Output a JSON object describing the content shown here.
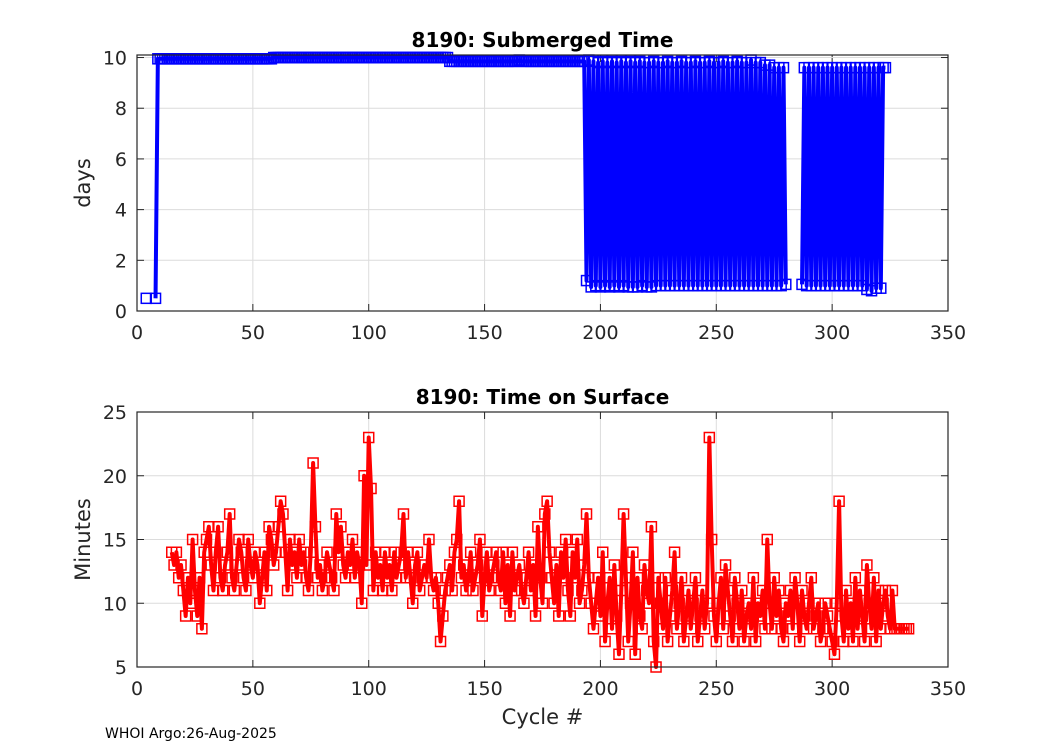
{
  "chart_data": [
    {
      "type": "line",
      "title": "8190: Submerged Time",
      "xlabel": "",
      "ylabel": "days",
      "xlim": [
        0,
        350
      ],
      "ylim": [
        0,
        10.1
      ],
      "xticks": [
        0,
        50,
        100,
        150,
        200,
        250,
        300,
        350
      ],
      "yticks": [
        0,
        2,
        4,
        6,
        8,
        10
      ],
      "grid": true,
      "color": "#0000ff",
      "marker": "square",
      "series": [
        {
          "name": "Submerged Time",
          "x_start": 4,
          "values": [
            0.5,
            null,
            null,
            null,
            0.5,
            9.95,
            9.95,
            9.95,
            9.95,
            9.95,
            9.95,
            9.95,
            9.95,
            9.95,
            9.95,
            9.95,
            9.95,
            9.95,
            9.95,
            9.95,
            9.95,
            9.95,
            9.95,
            9.95,
            9.95,
            9.95,
            9.95,
            9.95,
            9.95,
            9.95,
            9.95,
            9.95,
            9.95,
            9.95,
            9.95,
            9.95,
            9.95,
            9.95,
            9.95,
            9.95,
            9.95,
            9.95,
            9.95,
            9.95,
            9.95,
            9.95,
            9.95,
            9.95,
            9.95,
            9.95,
            9.95,
            9.95,
            9.95,
            9.95,
            9.95,
            10,
            10,
            10,
            10,
            10,
            10,
            10,
            10,
            10,
            10,
            10,
            10,
            10,
            10,
            10,
            10,
            10,
            10,
            10,
            10,
            10,
            10,
            10,
            10,
            10,
            10,
            10,
            10,
            10,
            10,
            10,
            10,
            10,
            10,
            10,
            10,
            10,
            10,
            10,
            10,
            10,
            10,
            10,
            10,
            10,
            10,
            10,
            10,
            10,
            10,
            10,
            10,
            10,
            10,
            10,
            10,
            10,
            10,
            10,
            10,
            10,
            10,
            10,
            10,
            10,
            10,
            10,
            10,
            10,
            10,
            10,
            10,
            10,
            10,
            10,
            10,
            9.85,
            9.85,
            9.85,
            9.85,
            9.85,
            9.85,
            9.85,
            9.85,
            9.85,
            9.85,
            9.85,
            9.85,
            9.85,
            9.85,
            9.85,
            9.85,
            9.85,
            9.85,
            9.85,
            9.85,
            9.85,
            9.85,
            9.85,
            9.85,
            9.85,
            9.85,
            9.85,
            9.85,
            9.85,
            9.85,
            9.9,
            9.85,
            9.85,
            9.85,
            9.85,
            9.85,
            9.85,
            9.85,
            9.85,
            9.85,
            9.85,
            9.85,
            9.85,
            9.85,
            9.85,
            9.85,
            9.85,
            9.85,
            9.85,
            9.85,
            9.85,
            9.85,
            9.85,
            9.85,
            9.85,
            9.85,
            9.85,
            9.85,
            9.85,
            1.2,
            9.9,
            0.95,
            9.85,
            1.0,
            9.8,
            0.95,
            9.85,
            1.0,
            9.8,
            0.95,
            9.85,
            1.0,
            9.8,
            0.95,
            9.85,
            1.0,
            9.8,
            0.95,
            9.85,
            0.95,
            9.8,
            0.95,
            9.85,
            1.0,
            9.8,
            0.95,
            9.8,
            0.95,
            9.85,
            1.0,
            9.8,
            1.0,
            9.8,
            1.0,
            9.85,
            1.0,
            9.8,
            1.0,
            9.8,
            1.0,
            9.85,
            1.0,
            9.8,
            1.0,
            9.8,
            1.0,
            9.85,
            1.0,
            9.8,
            1.0,
            9.8,
            1.0,
            9.85,
            1.0,
            9.8,
            1.0,
            9.8,
            1.0,
            9.85,
            1.0,
            9.8,
            1.0,
            9.8,
            1.0,
            9.85,
            1.0,
            9.8,
            1.0,
            9.8,
            1.0,
            9.9,
            1.0,
            9.8,
            1.0,
            9.8,
            1.0,
            9.7,
            1.0,
            9.7,
            1.0,
            9.6,
            1.0,
            9.6,
            1.0,
            9.6,
            1.05,
            null,
            null,
            null,
            null,
            null,
            null,
            1.05,
            9.6,
            1.0,
            9.6,
            1.0,
            9.6,
            1.0,
            9.6,
            1.0,
            9.6,
            1.0,
            9.6,
            1.0,
            9.6,
            1.0,
            9.6,
            1.0,
            9.6,
            1.0,
            9.6,
            1.0,
            9.6,
            1.0,
            9.6,
            1.0,
            9.6,
            1.0,
            9.6,
            0.85,
            9.6,
            0.8,
            9.6,
            0.9,
            9.6,
            0.9,
            9.6,
            9.6
          ]
        }
      ]
    },
    {
      "type": "line",
      "title": "8190: Time on Surface",
      "xlabel": "Cycle #",
      "ylabel": "Minutes",
      "xlim": [
        0,
        350
      ],
      "ylim": [
        5,
        25
      ],
      "xticks": [
        0,
        50,
        100,
        150,
        200,
        250,
        300,
        350
      ],
      "yticks": [
        5,
        10,
        15,
        20,
        25
      ],
      "grid": true,
      "color": "#ff0000",
      "marker": "square",
      "series": [
        {
          "name": "Time on Surface",
          "x_start": 15,
          "values": [
            14,
            13,
            14,
            12,
            13,
            11,
            9,
            12,
            10,
            15,
            11,
            9,
            12,
            8,
            14,
            15,
            16,
            13,
            11,
            14,
            16,
            12,
            11,
            13,
            14,
            17,
            12,
            11,
            13,
            15,
            14,
            12,
            11,
            15,
            13,
            12,
            14,
            13,
            10,
            12,
            14,
            11,
            16,
            15,
            13,
            14,
            16,
            18,
            17,
            14,
            11,
            15,
            13,
            14,
            12,
            15,
            13,
            14,
            12,
            11,
            14,
            21,
            16,
            12,
            13,
            11,
            12,
            14,
            13,
            12,
            11,
            17,
            14,
            16,
            13,
            12,
            14,
            13,
            15,
            12,
            14,
            13,
            10,
            20,
            13,
            23,
            19,
            11,
            14,
            12,
            13,
            11,
            14,
            12,
            13,
            11,
            14,
            12,
            13,
            14,
            17,
            12,
            14,
            12,
            10,
            13,
            14,
            11,
            12,
            13,
            12,
            15,
            12,
            11,
            12,
            10,
            7,
            9,
            11,
            12,
            13,
            11,
            14,
            15,
            18,
            12,
            13,
            11,
            12,
            14,
            11,
            12,
            13,
            15,
            9,
            12,
            14,
            11,
            12,
            13,
            14,
            12,
            11,
            14,
            10,
            13,
            9,
            14,
            11,
            12,
            13,
            11,
            10,
            12,
            14,
            11,
            13,
            9,
            16,
            12,
            10,
            17,
            18,
            14,
            12,
            10,
            13,
            9,
            14,
            12,
            15,
            11,
            9,
            14,
            12,
            15,
            10,
            11,
            13,
            17,
            12,
            10,
            8,
            10,
            12,
            9,
            14,
            7,
            10,
            12,
            8,
            13,
            9,
            6,
            11,
            17,
            12,
            7,
            10,
            14,
            6,
            12,
            9,
            8,
            13,
            11,
            10,
            16,
            7,
            5,
            12,
            10,
            8,
            12,
            7,
            9,
            11,
            14,
            8,
            10,
            12,
            7,
            9,
            11,
            8,
            10,
            12,
            7,
            9,
            11,
            8,
            10,
            23,
            15,
            9,
            7,
            10,
            12,
            8,
            13,
            11,
            9,
            7,
            12,
            10,
            8,
            11,
            7,
            9,
            10,
            8,
            12,
            7,
            10,
            9,
            11,
            8,
            15,
            10,
            8,
            12,
            9,
            11,
            8,
            7,
            10,
            9,
            11,
            8,
            12,
            10,
            7,
            11,
            9,
            8,
            10,
            12,
            8,
            9,
            10,
            7,
            8,
            10,
            9,
            8,
            7,
            6,
            10,
            18,
            9,
            7,
            11,
            8,
            10,
            7,
            12,
            8,
            11,
            9,
            7,
            13,
            10,
            8,
            12,
            7,
            11,
            8,
            10,
            11,
            9,
            8,
            11,
            8,
            8,
            8,
            8,
            8,
            8,
            8
          ]
        }
      ]
    }
  ],
  "footer": "WHOI Argo:26-Aug-2025"
}
